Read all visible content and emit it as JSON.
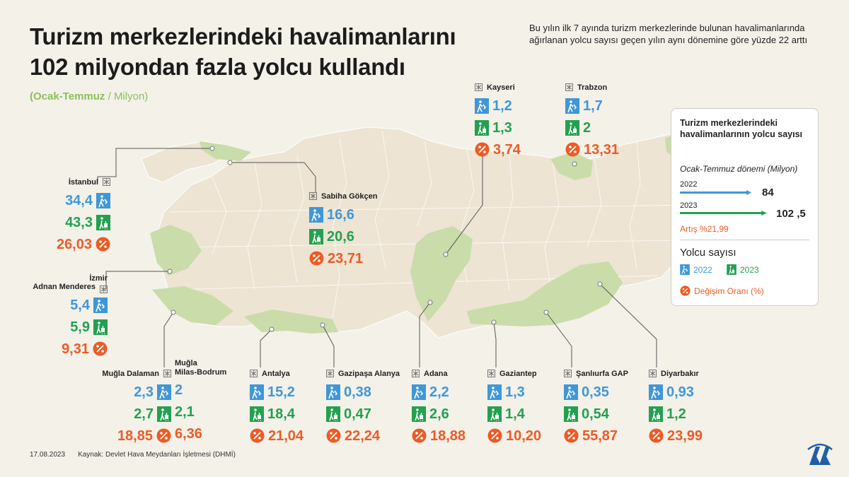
{
  "title_line1": "Turizm merkezlerindeki havalimanlarını",
  "title_line2": "102 milyondan fazla yolcu kullandı",
  "subtitle_main": "(Ocak-Temmuz",
  "subtitle_sep": " / ",
  "subtitle_unit": "Milyon)",
  "description": "Bu yılın ilk 7 ayında turizm merkezlerinde bulunan havalimanlarında ağırlanan yolcu sayısı geçen yılın aynı dönemine göre yüzde 22 arttı",
  "footer_date": "17.08.2023",
  "footer_source": "Kaynak: Devlet Hava Meydanları İşletmesi (DHMİ)",
  "legend": {
    "title": "Turizm merkezlerindeki havalimanlarının yolcu sayısı",
    "period": "Ocak-Temmuz dönemi (Milyon)",
    "year1": "2022",
    "value1": "84",
    "year2": "2023",
    "value2": "102 ,5",
    "increase": "Artış %21,99",
    "heading": "Yolcu sayısı",
    "item_2022": "2022",
    "item_2023": "2023",
    "item_change": "Değişim Oranı (%)"
  },
  "bar_values": [
    84,
    102.5
  ],
  "colors": {
    "y2022": "#3f97d8",
    "y2023": "#23a050",
    "change": "#ec5b26",
    "map": "#ede4d3",
    "region": "#c9dcaa"
  },
  "airports": [
    {
      "name": "İstanbul",
      "v2022": "34,4",
      "v2023": "43,3",
      "change": "26,03"
    },
    {
      "name": "Sabiha Gökçen",
      "v2022": "16,6",
      "v2023": "20,6",
      "change": "23,71"
    },
    {
      "name": "Kayseri",
      "v2022": "1,2",
      "v2023": "1,3",
      "change": "3,74"
    },
    {
      "name": "Trabzon",
      "v2022": "1,7",
      "v2023": "2",
      "change": "13,31"
    },
    {
      "name_line1": "İzmir",
      "name_line2": "Adnan Menderes",
      "v2022": "5,4",
      "v2023": "5,9",
      "change": "9,31"
    },
    {
      "name": "Muğla Dalaman",
      "v2022": "2,3",
      "v2023": "2,7",
      "change": "18,85"
    },
    {
      "name_line1": "Muğla",
      "name_line2": "Milas-Bodrum",
      "v2022": "2",
      "v2023": "2,1",
      "change": "6,36"
    },
    {
      "name": "Antalya",
      "v2022": "15,2",
      "v2023": "18,4",
      "change": "21,04"
    },
    {
      "name": "Gazipaşa Alanya",
      "v2022": "0,38",
      "v2023": "0,47",
      "change": "22,24"
    },
    {
      "name": "Adana",
      "v2022": "2,2",
      "v2023": "2,6",
      "change": "18,88"
    },
    {
      "name": "Gaziantep",
      "v2022": "1,3",
      "v2023": "1,4",
      "change": "10,20"
    },
    {
      "name": "Şanlıurfa GAP",
      "v2022": "0,35",
      "v2023": "0,54",
      "change": "55,87"
    },
    {
      "name": "Diyarbakır",
      "v2022": "0,93",
      "v2023": "1,2",
      "change": "23,99"
    }
  ]
}
